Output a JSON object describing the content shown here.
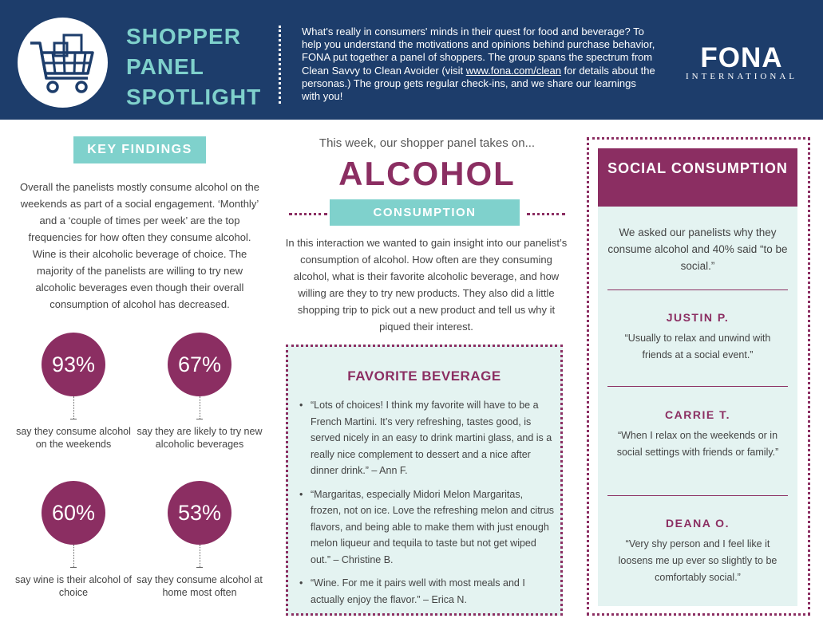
{
  "header": {
    "title_lines": [
      "SHOPPER",
      "PANEL",
      "SPOTLIGHT"
    ],
    "intro_before_link": "What's really in consumers' minds in their quest for food and beverage? To help you understand the motivations and opinions behind purchase behavior, FONA put together a panel of shoppers. The group spans the spectrum from Clean Savvy to Clean Avoider (visit ",
    "intro_link": "www.fona.com/clean",
    "intro_after_link": " for details about the personas.) The group gets regular check-ins, and we share our learnings with you!",
    "logo_main": "FONA",
    "logo_sub": "INTERNATIONAL",
    "icon": "shopping-cart-icon"
  },
  "key_findings": {
    "label": "KEY FINDINGS",
    "text": "Overall the panelists mostly consume alcohol on the weekends as part of a social engagement. ‘Monthly’ and a ‘couple of times per week’ are the top frequencies for how often they consume alcohol. Wine is their alcoholic beverage of choice. The majority of the panelists are willing to try new alcoholic beverages even though their overall consumption of alcohol has decreased.",
    "stats": [
      {
        "value": "93%",
        "label": "say they consume alcohol on the weekends"
      },
      {
        "value": "67%",
        "label": "say they are likely to try new alcoholic beverages"
      },
      {
        "value": "60%",
        "label": "say wine is their alcohol of choice"
      },
      {
        "value": "53%",
        "label": "say they consume alcohol at home most often"
      }
    ]
  },
  "main": {
    "this_week": "This week, our shopper panel takes on...",
    "topic": "ALCOHOL",
    "subtopic": "CONSUMPTION",
    "interaction": "In this interaction we wanted to gain insight into our panelist’s consumption of alcohol. How often are they consuming alcohol, what is their favorite alcoholic beverage, and how willing are they to try new products. They also did a little shopping trip to pick out a new product and tell us why it piqued their interest.",
    "favorite": {
      "title": "FAVORITE BEVERAGE",
      "quotes": [
        "“Lots of choices! I think my favorite will have to be a French Martini. It’s very refreshing, tastes good, is served nicely in an easy to drink martini glass, and is a really nice complement to dessert and a nice after dinner drink.” – Ann F.",
        "“Margaritas, especially Midori Melon Margaritas, frozen, not on ice. Love the refreshing melon and citrus flavors, and being able to make them with just enough melon liqueur and tequila to taste but not get wiped out.” – Christine B.",
        "“Wine. For me it pairs well with most meals and I actually enjoy the flavor.” – Erica N."
      ]
    }
  },
  "social": {
    "title": "SOCIAL CONSUMPTION",
    "intro": "We asked our panelists why they consume alcohol and 40% said “to be social.”",
    "people": [
      {
        "name": "JUSTIN P.",
        "quote": "“Usually to relax and unwind with friends at a social event.”"
      },
      {
        "name": "CARRIE T.",
        "quote": "“When I relax on the weekends or in social settings with friends or family.”"
      },
      {
        "name": "DEANA O.",
        "quote": "“Very shy person and I feel like it loosens me up ever so slightly to be comfortably social.”"
      }
    ]
  }
}
